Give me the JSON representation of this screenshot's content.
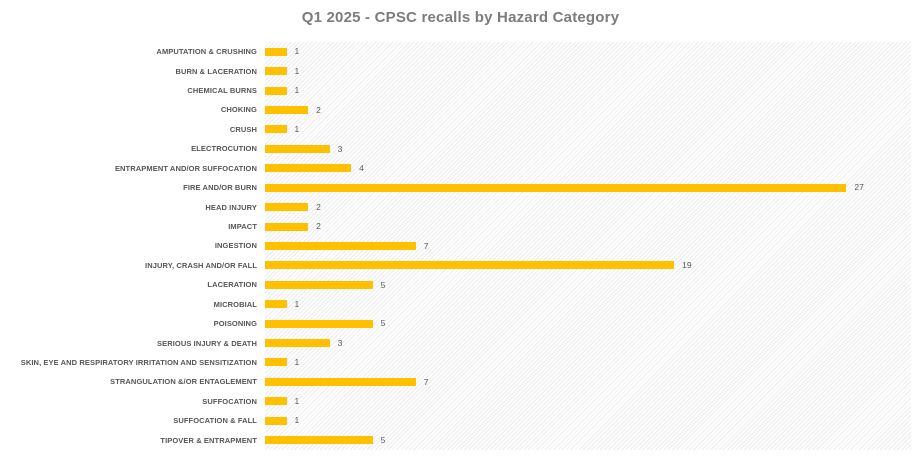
{
  "title": "Q1 2025 - CPSC recalls by Hazard Category",
  "colors": {
    "bar": "#FFC000",
    "title_text": "#7C7C7C",
    "category_label_text": "#565656",
    "value_label_text": "#595959",
    "plot_hatch_line": "#ECECEC",
    "background": "#FFFFFF"
  },
  "chart_data": {
    "type": "bar",
    "orientation": "horizontal",
    "title": "Q1 2025 - CPSC recalls by Hazard Category",
    "categories": [
      "AMPUTATION & CRUSHING",
      "BURN & LACERATION",
      "CHEMICAL BURNS",
      "CHOKING",
      "CRUSH",
      "ELECTROCUTION",
      "ENTRAPMENT AND/OR SUFFOCATION",
      "FIRE AND/OR BURN",
      "HEAD INJURY",
      "IMPACT",
      "INGESTION",
      "INJURY, CRASH AND/OR FALL",
      "LACERATION",
      "MICROBIAL",
      "POISONING",
      "SERIOUS INJURY & DEATH",
      "SKIN, EYE AND RESPIRATORY IRRITATION AND SENSITIZATION",
      "STRANGULATION &/OR ENTAGLEMENT",
      "SUFFOCATION",
      "SUFFOCATION & FALL",
      "TIPOVER & ENTRAPMENT"
    ],
    "values": [
      1,
      1,
      1,
      2,
      1,
      3,
      4,
      27,
      2,
      2,
      7,
      19,
      5,
      1,
      5,
      3,
      1,
      7,
      1,
      1,
      5
    ],
    "xlabel": "",
    "ylabel": "",
    "xlim": [
      0,
      30
    ],
    "grid": false,
    "legend_position": "none",
    "value_labels": true,
    "bar_color": "#FFC000",
    "plot_background": "diagonal-hatch"
  }
}
